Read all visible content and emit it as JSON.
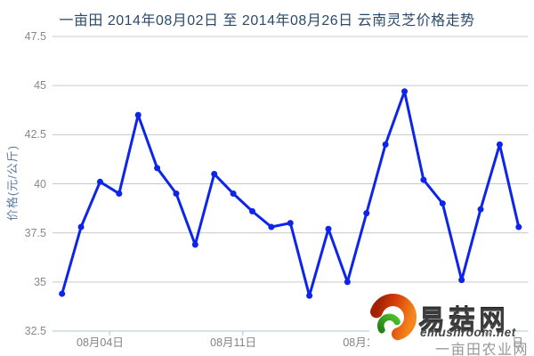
{
  "chart_data": {
    "type": "line",
    "title": "一亩田 2014年08月02日 至 2014年08月26日 云南灵芝价格走势",
    "ylabel": "价格(元/公斤)",
    "xlabel": "",
    "ylim": [
      32.5,
      47.5
    ],
    "yticks": [
      47.5,
      45,
      42.5,
      40,
      37.5,
      35,
      32.5
    ],
    "grid": "horizontal",
    "legend_position": "none",
    "categories": [
      "08月02日",
      "08月03日",
      "08月04日",
      "08月05日",
      "08月06日",
      "08月07日",
      "08月08日",
      "08月09日",
      "08月10日",
      "08月11日",
      "08月12日",
      "08月13日",
      "08月14日",
      "08月15日",
      "08月16日",
      "08月17日",
      "08月18日",
      "08月19日",
      "08月20日",
      "08月21日",
      "08月22日",
      "08月23日",
      "08月24日",
      "08月25日",
      "08月26日"
    ],
    "values": [
      34.4,
      37.8,
      40.1,
      39.5,
      43.5,
      40.8,
      39.5,
      36.9,
      40.5,
      39.5,
      38.6,
      37.8,
      38.0,
      34.3,
      37.7,
      35.0,
      38.5,
      42.0,
      44.7,
      40.2,
      39.0,
      35.1,
      38.7,
      42.0,
      37.8
    ],
    "x_tick_labels": [
      "08月04日",
      "08月11日",
      "08月18日",
      "08月25日"
    ],
    "x_tick_indices": [
      2,
      9,
      16,
      23
    ],
    "series_name": "云南灵芝价格",
    "colors": {
      "line": "#0d24eb",
      "marker": "#0d24eb",
      "grid": "#c9c9c9",
      "axis": "#aec4d8",
      "title": "#2c4a68",
      "axis_title": "#5c7da3",
      "tick_label": "#898989"
    }
  },
  "watermark": {
    "brand": "易菇网",
    "domain": "emushroom.net",
    "small_mark": "ue",
    "subtext": "一亩田农业网",
    "logo_colors": {
      "red_dark": "#a32104",
      "orange": "#f5851c",
      "green_dark": "#1c7a12",
      "green_light": "#4fc32d"
    }
  }
}
